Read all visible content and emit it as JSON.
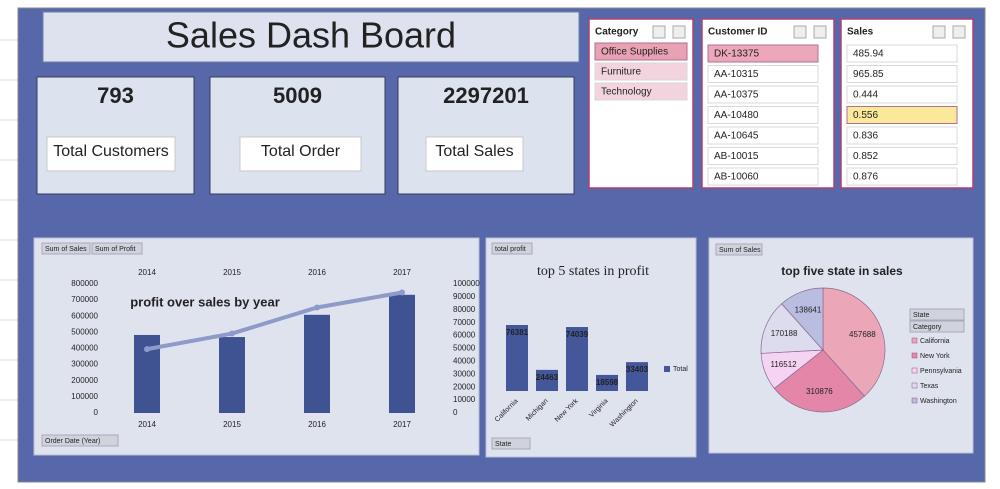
{
  "header": {
    "title": "Sales Dash Board"
  },
  "kpis": [
    {
      "value": 793,
      "label": "Total Customers"
    },
    {
      "value": 5009,
      "label": "Total Order"
    },
    {
      "value": 2297201,
      "label": "Total Sales"
    }
  ],
  "slicers": [
    {
      "title": "Category",
      "items": [
        "Office Supplies",
        "Furniture",
        "Technology"
      ],
      "selected": 0
    },
    {
      "title": "Customer ID",
      "items": [
        "DK-13375",
        "AA-10315",
        "AA-10375",
        "AA-10480",
        "AA-10645",
        "AB-10015",
        "AB-10060"
      ],
      "selected": 0
    },
    {
      "title": "Sales",
      "items": [
        485.94,
        965.85,
        0.444,
        0.556,
        0.836,
        0.852,
        0.876
      ],
      "selected": 3
    }
  ],
  "charts": [
    {
      "type": "combo",
      "title": "profit over sales by year",
      "filter_button": "Order Date (Year)",
      "categories": [
        "2014",
        "2015",
        "2016",
        "2017"
      ],
      "series": [
        {
          "name": "Sum of Sales",
          "color": "#3f5292",
          "values": [
            484000,
            471000,
            609000,
            733000
          ]
        },
        {
          "name": "Sum of Profit",
          "color": "#8e9bc9",
          "values": [
            49500,
            61600,
            81800,
            93400
          ],
          "axis": "y2"
        }
      ],
      "ylim": [
        0,
        800000
      ],
      "yticks": [
        0,
        100000,
        200000,
        300000,
        400000,
        500000,
        600000,
        700000,
        800000
      ],
      "y2lim": [
        0,
        100000
      ],
      "y2ticks": [
        0,
        10000,
        20000,
        30000,
        40000,
        50000,
        60000,
        70000,
        80000,
        90000,
        100000
      ]
    },
    {
      "type": "bar",
      "title": "top 5 states in profit",
      "field_button": "total profit",
      "filter_button": "State",
      "categories": [
        "California",
        "Michigan",
        "New York",
        "Virginia",
        "Washington"
      ],
      "series": [
        {
          "name": "Total",
          "color": "#44579a",
          "values": [
            76381,
            24463,
            74039,
            18598,
            33403
          ]
        }
      ]
    },
    {
      "type": "pie",
      "title": "top five state in sales",
      "field_button": "Sum of Sales",
      "filter_buttons": [
        "State",
        "Category"
      ],
      "categories": [
        "California",
        "New York",
        "Pennsylvania",
        "Texas",
        "Washington"
      ],
      "values": [
        457688,
        310876,
        116512,
        170188,
        138641
      ],
      "colors": [
        "#eba7b8",
        "#e386a8",
        "#f5d3f2",
        "#dcdcee",
        "#b9bde0"
      ]
    }
  ]
}
